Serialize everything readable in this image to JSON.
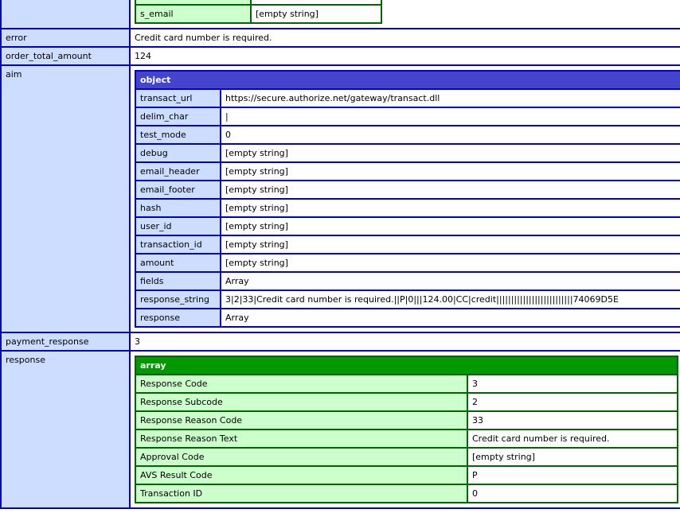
{
  "colors": {
    "blue_border": "#0000cc",
    "object_header_bg": "#4444cc",
    "blue_label_bg": "#ccddff",
    "green_border": "#006600",
    "array_header_bg": "#009900",
    "green_label_bg": "#ccffcc"
  },
  "top_table": {
    "rows": [
      {
        "label": "s_email",
        "value": "[empty string]"
      }
    ]
  },
  "outer": {
    "rows": [
      {
        "label": "error",
        "value": "Credit card number is required."
      },
      {
        "label": "order_total_amount",
        "value": "124"
      },
      {
        "label": "aim"
      },
      {
        "label": "payment_response",
        "value": "3"
      },
      {
        "label": "response"
      }
    ]
  },
  "aim_object": {
    "header": "object",
    "rows": [
      {
        "label": "transact_url",
        "value": "https://secure.authorize.net/gateway/transact.dll"
      },
      {
        "label": "delim_char",
        "value": "|"
      },
      {
        "label": "test_mode",
        "value": "0"
      },
      {
        "label": "debug",
        "value": "[empty string]"
      },
      {
        "label": "email_header",
        "value": "[empty string]"
      },
      {
        "label": "email_footer",
        "value": "[empty string]"
      },
      {
        "label": "hash",
        "value": "[empty string]"
      },
      {
        "label": "user_id",
        "value": "[empty string]"
      },
      {
        "label": "transaction_id",
        "value": "[empty string]"
      },
      {
        "label": "amount",
        "value": "[empty string]"
      },
      {
        "label": "fields",
        "value": "Array"
      },
      {
        "label": "response_string",
        "value": "3|2|33|Credit card number is required.||P|0|||124.00|CC|credit||||||||||||||||||||||||||74069D5E"
      },
      {
        "label": "response",
        "value": "Array"
      }
    ]
  },
  "response_array": {
    "header": "array",
    "rows": [
      {
        "label": "Response Code",
        "value": "3"
      },
      {
        "label": "Response Subcode",
        "value": "2"
      },
      {
        "label": "Response Reason Code",
        "value": "33"
      },
      {
        "label": "Response Reason Text",
        "value": "Credit card number is required."
      },
      {
        "label": "Approval Code",
        "value": "[empty string]"
      },
      {
        "label": "AVS Result Code",
        "value": "P"
      },
      {
        "label": "Transaction ID",
        "value": "0"
      }
    ]
  }
}
